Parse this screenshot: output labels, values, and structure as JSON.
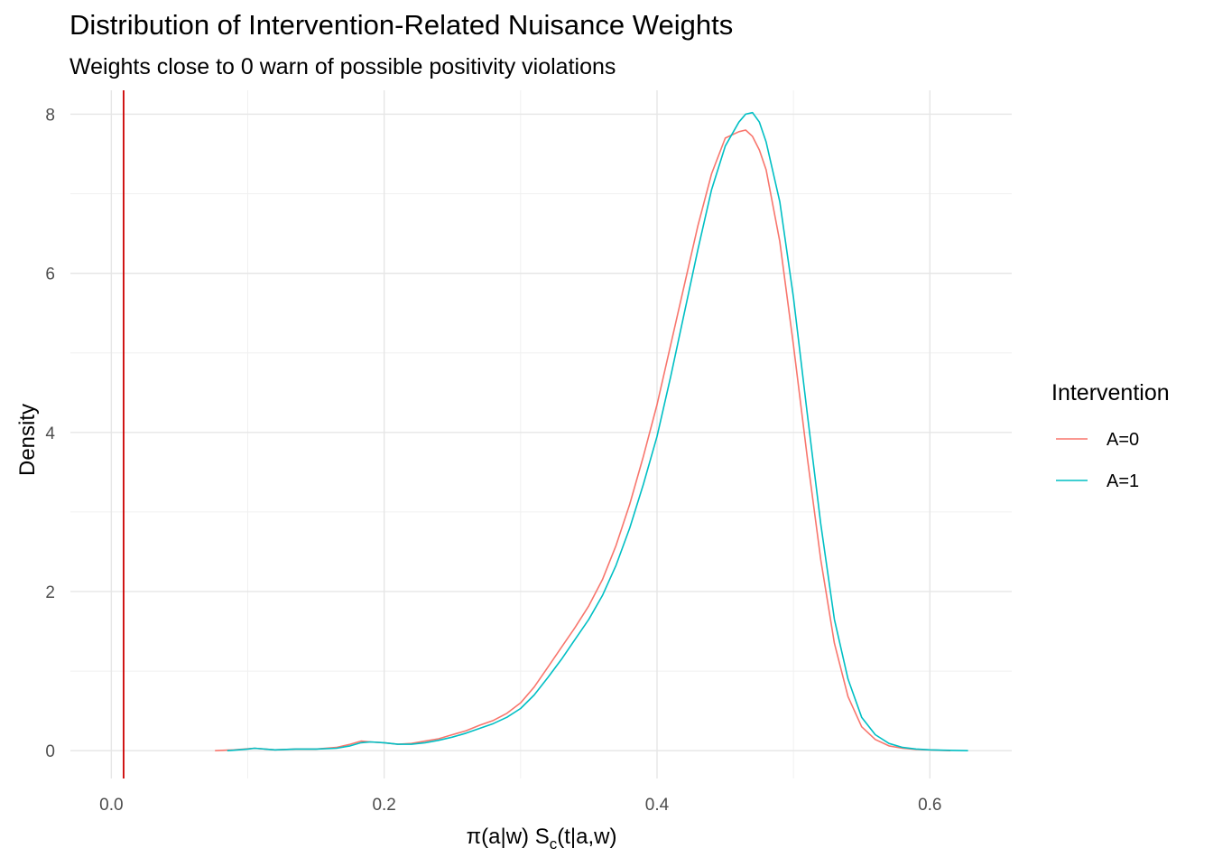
{
  "title": "Distribution of Intervention-Related Nuisance Weights",
  "subtitle": "Weights close to 0 warn of possible positivity violations",
  "chart_data": {
    "type": "line",
    "title": "Distribution of Intervention-Related Nuisance Weights",
    "subtitle": "Weights close to 0 warn of possible positivity violations",
    "xlabel": "π(a|w) S_c(t|a,w)",
    "xlabel_parts": {
      "main": "π(a|w) S",
      "sub": "c",
      "tail": "(t|a,w)"
    },
    "ylabel": "Density",
    "xlim": [
      -0.03,
      0.66
    ],
    "ylim": [
      -0.35,
      8.3
    ],
    "x_ticks": [
      0.0,
      0.2,
      0.4,
      0.6
    ],
    "x_tick_labels": [
      "0.0",
      "0.2",
      "0.4",
      "0.6"
    ],
    "y_ticks": [
      0,
      2,
      4,
      6,
      8
    ],
    "y_tick_labels": [
      "0",
      "2",
      "4",
      "6",
      "8"
    ],
    "grid": true,
    "legend": {
      "title": "Intervention",
      "position": "right"
    },
    "vline": {
      "x": 0.009,
      "color": "#cc0000"
    },
    "series": [
      {
        "name": "A=0",
        "color": "#F8766D",
        "x": [
          0.076,
          0.09,
          0.105,
          0.12,
          0.135,
          0.15,
          0.165,
          0.175,
          0.183,
          0.19,
          0.2,
          0.21,
          0.22,
          0.23,
          0.24,
          0.25,
          0.26,
          0.27,
          0.28,
          0.29,
          0.3,
          0.31,
          0.32,
          0.33,
          0.34,
          0.35,
          0.36,
          0.37,
          0.38,
          0.39,
          0.4,
          0.41,
          0.42,
          0.43,
          0.44,
          0.45,
          0.46,
          0.465,
          0.47,
          0.475,
          0.48,
          0.49,
          0.5,
          0.51,
          0.52,
          0.53,
          0.54,
          0.55,
          0.56,
          0.57,
          0.58,
          0.59,
          0.6,
          0.615
        ],
        "y": [
          0.0,
          0.01,
          0.03,
          0.01,
          0.02,
          0.02,
          0.04,
          0.08,
          0.12,
          0.11,
          0.1,
          0.08,
          0.09,
          0.12,
          0.15,
          0.2,
          0.25,
          0.32,
          0.38,
          0.47,
          0.6,
          0.8,
          1.05,
          1.3,
          1.55,
          1.82,
          2.15,
          2.58,
          3.1,
          3.7,
          4.35,
          5.1,
          5.85,
          6.6,
          7.25,
          7.7,
          7.78,
          7.8,
          7.72,
          7.55,
          7.3,
          6.4,
          5.1,
          3.7,
          2.4,
          1.35,
          0.68,
          0.3,
          0.14,
          0.06,
          0.03,
          0.015,
          0.01,
          0.0
        ]
      },
      {
        "name": "A=1",
        "color": "#00BFC4",
        "x": [
          0.085,
          0.1,
          0.105,
          0.12,
          0.135,
          0.15,
          0.165,
          0.175,
          0.183,
          0.19,
          0.2,
          0.21,
          0.22,
          0.23,
          0.24,
          0.25,
          0.26,
          0.27,
          0.28,
          0.29,
          0.3,
          0.31,
          0.32,
          0.33,
          0.34,
          0.35,
          0.36,
          0.37,
          0.38,
          0.39,
          0.4,
          0.41,
          0.42,
          0.43,
          0.44,
          0.45,
          0.46,
          0.465,
          0.47,
          0.475,
          0.48,
          0.49,
          0.5,
          0.51,
          0.52,
          0.53,
          0.54,
          0.55,
          0.56,
          0.57,
          0.58,
          0.59,
          0.6,
          0.61,
          0.628
        ],
        "y": [
          0.0,
          0.02,
          0.03,
          0.01,
          0.02,
          0.02,
          0.03,
          0.06,
          0.1,
          0.11,
          0.1,
          0.08,
          0.08,
          0.1,
          0.13,
          0.17,
          0.22,
          0.28,
          0.34,
          0.42,
          0.53,
          0.7,
          0.92,
          1.15,
          1.4,
          1.65,
          1.95,
          2.33,
          2.8,
          3.35,
          3.95,
          4.7,
          5.5,
          6.3,
          7.05,
          7.6,
          7.9,
          8.0,
          8.02,
          7.9,
          7.65,
          6.9,
          5.7,
          4.25,
          2.85,
          1.65,
          0.9,
          0.42,
          0.2,
          0.09,
          0.04,
          0.02,
          0.01,
          0.005,
          0.0
        ]
      }
    ]
  }
}
